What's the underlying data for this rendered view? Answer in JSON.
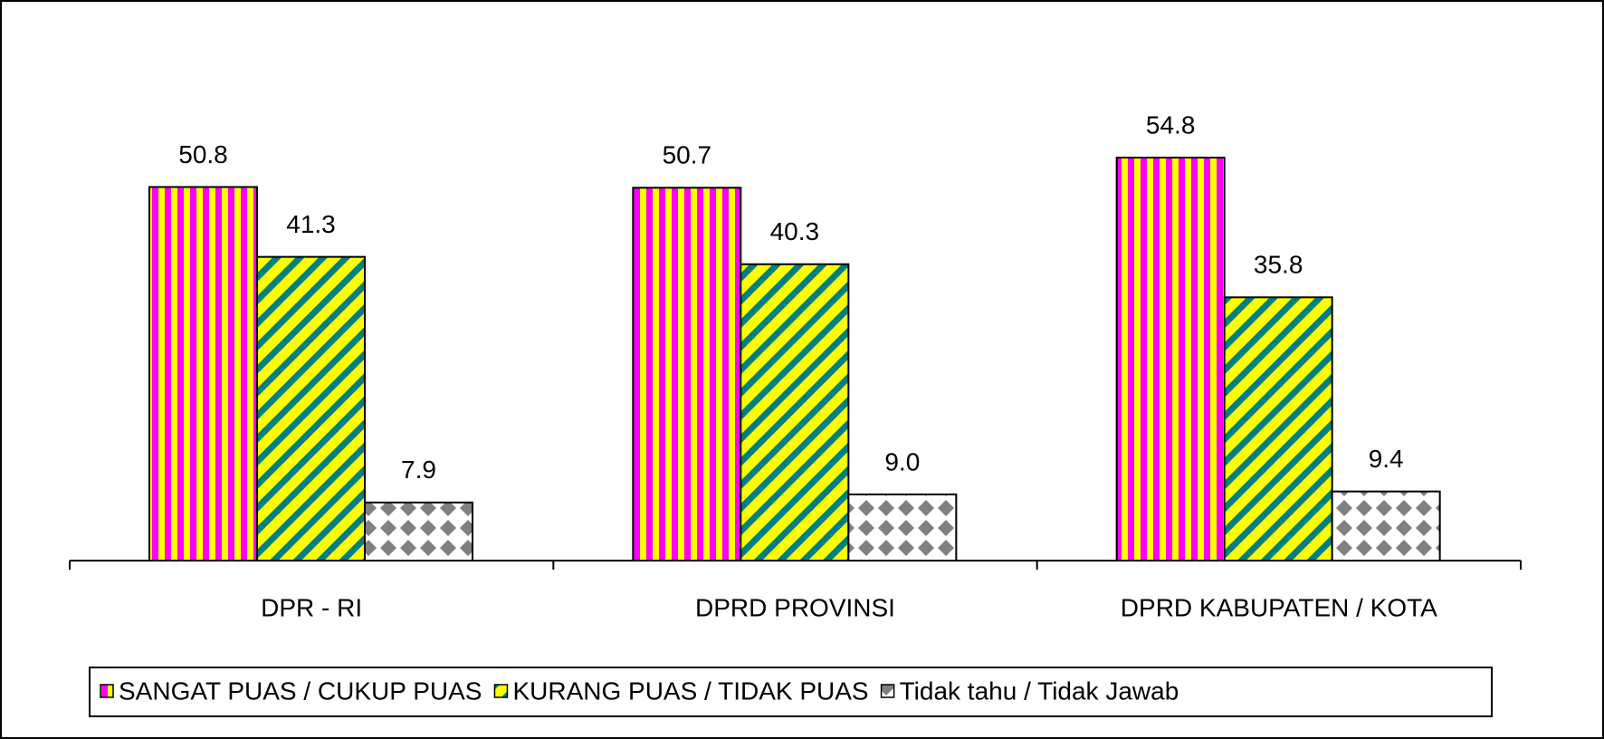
{
  "chart_data": {
    "type": "bar",
    "categories": [
      "DPR - RI",
      "DPRD PROVINSI",
      "DPRD KABUPATEN / KOTA"
    ],
    "series": [
      {
        "name": "SANGAT PUAS / CUKUP PUAS",
        "color": "#ff00ff",
        "values": [
          50.8,
          50.7,
          54.8
        ],
        "value_labels": [
          "50.8",
          "50.7",
          "54.8"
        ]
      },
      {
        "name": "KURANG PUAS / TIDAK PUAS",
        "color": "#008080",
        "values": [
          41.3,
          40.3,
          35.8
        ],
        "value_labels": [
          "41.3",
          "40.3",
          "35.8"
        ]
      },
      {
        "name": "Tidak tahu / Tidak Jawab",
        "color": "#808080",
        "values": [
          7.9,
          9.0,
          9.4
        ],
        "value_labels": [
          "7.9",
          "9.0",
          "9.4"
        ]
      }
    ]
  }
}
